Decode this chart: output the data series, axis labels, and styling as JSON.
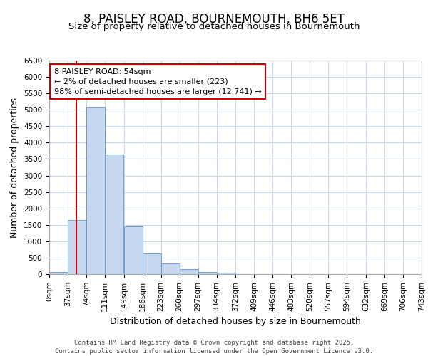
{
  "title1": "8, PAISLEY ROAD, BOURNEMOUTH, BH6 5ET",
  "title2": "Size of property relative to detached houses in Bournemouth",
  "xlabel": "Distribution of detached houses by size in Bournemouth",
  "ylabel": "Number of detached properties",
  "property_size": 54,
  "annotation_text": "8 PAISLEY ROAD: 54sqm\n← 2% of detached houses are smaller (223)\n98% of semi-detached houses are larger (12,741) →",
  "bar_color": "#c5d8f0",
  "bar_edge_color": "#6aa0d4",
  "red_line_color": "#cc0000",
  "annotation_box_color": "#ffffff",
  "annotation_box_edge_color": "#cc0000",
  "fig_background_color": "#ffffff",
  "ax_background_color": "#ffffff",
  "grid_color": "#c8d8ec",
  "bin_edges": [
    0,
    37,
    74,
    111,
    149,
    186,
    223,
    260,
    297,
    334,
    372,
    409,
    446,
    483,
    520,
    557,
    594,
    632,
    669,
    706,
    743
  ],
  "bar_values": [
    70,
    1650,
    5100,
    3650,
    1450,
    625,
    325,
    155,
    60,
    40,
    0,
    0,
    0,
    0,
    0,
    0,
    0,
    0,
    0,
    0
  ],
  "ylim": [
    0,
    6500
  ],
  "yticks": [
    0,
    500,
    1000,
    1500,
    2000,
    2500,
    3000,
    3500,
    4000,
    4500,
    5000,
    5500,
    6000,
    6500
  ],
  "footer_text": "Contains HM Land Registry data © Crown copyright and database right 2025.\nContains public sector information licensed under the Open Government Licence v3.0.",
  "title1_fontsize": 12,
  "title2_fontsize": 9.5,
  "axis_label_fontsize": 9,
  "tick_fontsize": 7.5,
  "annotation_fontsize": 8,
  "footer_fontsize": 6.5
}
